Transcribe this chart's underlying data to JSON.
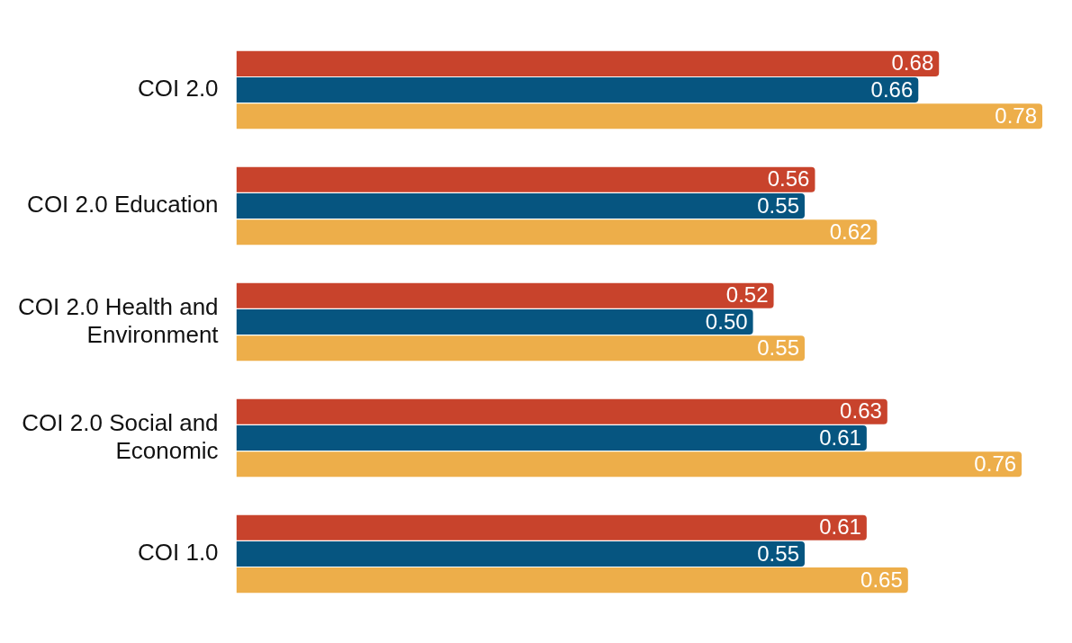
{
  "chart_data": {
    "type": "bar",
    "orientation": "horizontal",
    "categories": [
      "COI 2.0",
      "COI 2.0 Education",
      "COI 2.0 Health and Environment",
      "COI 2.0 Social and Economic",
      "COI 1.0"
    ],
    "series": [
      {
        "color": "#c8432c",
        "values": [
          0.68,
          0.56,
          0.52,
          0.63,
          0.61
        ],
        "value_labels": [
          "0.68",
          "0.56",
          "0.52",
          "0.63",
          "0.61"
        ]
      },
      {
        "color": "#065580",
        "values": [
          0.66,
          0.55,
          0.5,
          0.61,
          0.55
        ],
        "value_labels": [
          "0.66",
          "0.55",
          "0.50",
          "0.61",
          "0.55"
        ]
      },
      {
        "color": "#edae4a",
        "values": [
          0.78,
          0.62,
          0.55,
          0.76,
          0.65
        ],
        "value_labels": [
          "0.78",
          "0.62",
          "0.55",
          "0.76",
          "0.65"
        ]
      }
    ],
    "legend": false
  }
}
